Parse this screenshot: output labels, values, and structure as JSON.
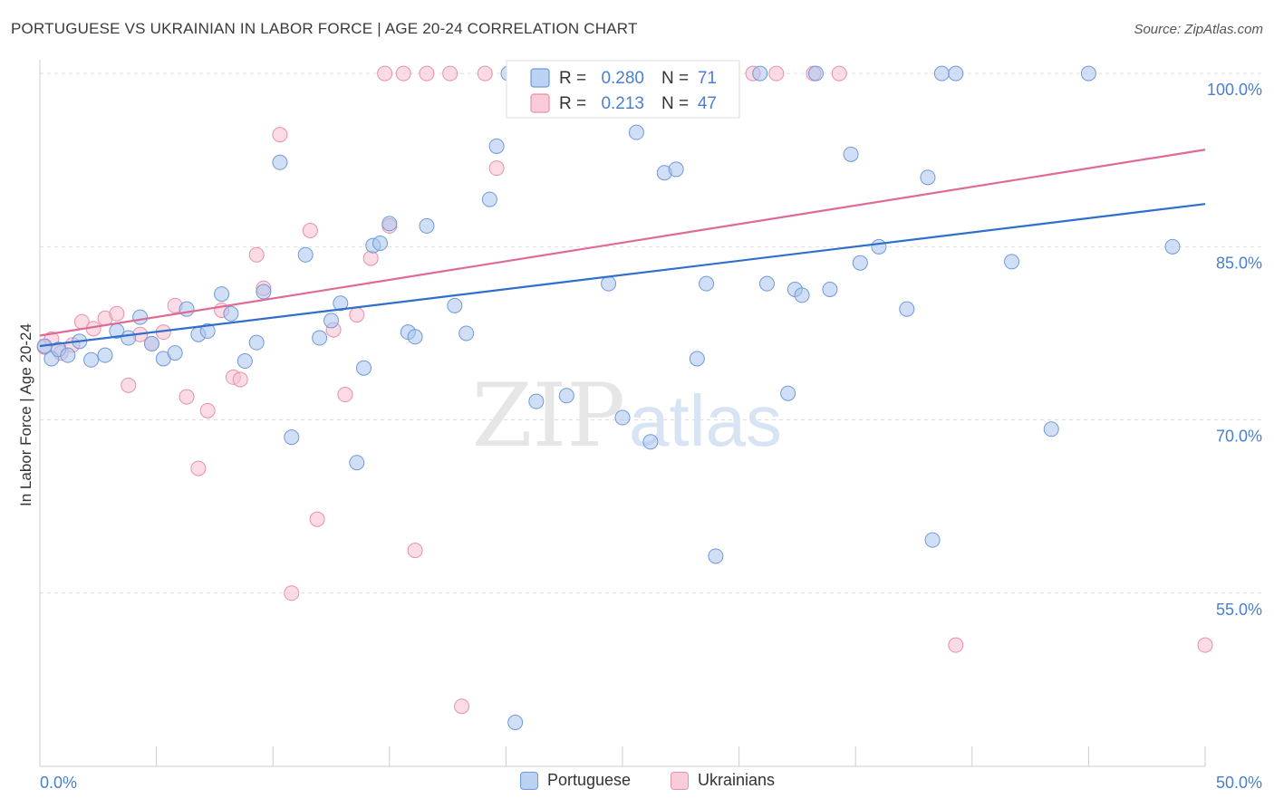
{
  "header": {
    "title": "PORTUGUESE VS UKRAINIAN IN LABOR FORCE | AGE 20-24 CORRELATION CHART",
    "source": "Source: ZipAtlas.com"
  },
  "watermark": {
    "part1": "ZIP",
    "part2": "atlas"
  },
  "colors": {
    "blue_fill": "#a9c4ee",
    "blue_stroke": "#6f9ad8",
    "blue_line": "#2f6fcc",
    "pink_fill": "#f7bfd0",
    "pink_stroke": "#e890ad",
    "pink_line": "#e06a96",
    "tick_label": "#4a7fd0",
    "grid": "#dddddd"
  },
  "chart_data": {
    "type": "scatter",
    "title": "PORTUGUESE VS UKRAINIAN IN LABOR FORCE | AGE 20-24 CORRELATION CHART",
    "xlabel": "",
    "ylabel": "In Labor Force | Age 20-24",
    "xlim": [
      0,
      50
    ],
    "ylim": [
      40,
      101.5
    ],
    "x_tick_labels": [
      {
        "value": 0,
        "label": "0.0%"
      },
      {
        "value": 50,
        "label": "50.0%"
      }
    ],
    "y_tick_labels": [
      {
        "value": 100,
        "label": "100.0%"
      },
      {
        "value": 85,
        "label": "85.0%"
      },
      {
        "value": 70,
        "label": "70.0%"
      },
      {
        "value": 55,
        "label": "55.0%"
      }
    ],
    "grid": true,
    "legend": {
      "placement": "top-center",
      "entries": [
        {
          "series": "Portuguese",
          "r_label": "R =",
          "r_value": "0.280",
          "n_label": "N =",
          "n_value": "71"
        },
        {
          "series": "Ukrainians",
          "r_label": "R =",
          "r_value": "0.213",
          "n_label": "N =",
          "n_value": "47"
        }
      ]
    },
    "bottom_legend": [
      "Portuguese",
      "Ukrainians"
    ],
    "series": [
      {
        "name": "Portuguese",
        "color": "blue",
        "trend": {
          "x": [
            0,
            50
          ],
          "y": [
            76.4,
            88.7
          ]
        },
        "points": [
          [
            0.2,
            76.4
          ],
          [
            0.5,
            75.3
          ],
          [
            0.8,
            76.1
          ],
          [
            1.2,
            75.6
          ],
          [
            1.7,
            76.8
          ],
          [
            2.2,
            75.2
          ],
          [
            2.8,
            75.6
          ],
          [
            3.3,
            77.7
          ],
          [
            3.8,
            77.1
          ],
          [
            4.3,
            78.9
          ],
          [
            4.8,
            76.6
          ],
          [
            5.3,
            75.3
          ],
          [
            5.8,
            75.8
          ],
          [
            6.3,
            79.6
          ],
          [
            6.8,
            77.4
          ],
          [
            7.2,
            77.7
          ],
          [
            7.8,
            80.9
          ],
          [
            8.2,
            79.2
          ],
          [
            8.8,
            75.1
          ],
          [
            9.3,
            76.7
          ],
          [
            9.6,
            81.1
          ],
          [
            10.3,
            92.3
          ],
          [
            10.8,
            68.5
          ],
          [
            11.4,
            84.3
          ],
          [
            12.0,
            77.1
          ],
          [
            12.5,
            78.6
          ],
          [
            12.9,
            80.1
          ],
          [
            13.6,
            66.3
          ],
          [
            13.9,
            74.5
          ],
          [
            14.3,
            85.1
          ],
          [
            14.6,
            85.3
          ],
          [
            15.0,
            87.0
          ],
          [
            15.8,
            77.6
          ],
          [
            16.1,
            77.2
          ],
          [
            16.6,
            86.8
          ],
          [
            17.8,
            79.9
          ],
          [
            18.3,
            77.5
          ],
          [
            19.3,
            89.1
          ],
          [
            19.6,
            93.7
          ],
          [
            20.1,
            100.0
          ],
          [
            20.4,
            43.8
          ],
          [
            21.3,
            71.6
          ],
          [
            22.6,
            72.1
          ],
          [
            24.4,
            81.8
          ],
          [
            25.0,
            70.2
          ],
          [
            25.6,
            94.9
          ],
          [
            26.2,
            68.1
          ],
          [
            26.8,
            91.4
          ],
          [
            27.3,
            91.7
          ],
          [
            28.2,
            75.3
          ],
          [
            28.6,
            81.8
          ],
          [
            29.0,
            58.2
          ],
          [
            30.9,
            100.0
          ],
          [
            31.2,
            81.8
          ],
          [
            32.1,
            72.3
          ],
          [
            32.4,
            81.3
          ],
          [
            32.7,
            80.8
          ],
          [
            33.3,
            100.0
          ],
          [
            33.9,
            81.3
          ],
          [
            34.8,
            93.0
          ],
          [
            35.2,
            83.6
          ],
          [
            36.0,
            85.0
          ],
          [
            37.2,
            79.6
          ],
          [
            38.1,
            91.0
          ],
          [
            38.3,
            59.6
          ],
          [
            38.7,
            100.0
          ],
          [
            39.3,
            100.0
          ],
          [
            41.7,
            83.7
          ],
          [
            43.4,
            69.2
          ],
          [
            45.0,
            100.0
          ],
          [
            48.6,
            85.0
          ]
        ]
      },
      {
        "name": "Ukrainians",
        "color": "pink",
        "trend": {
          "x": [
            0,
            50
          ],
          "y": [
            77.3,
            93.4
          ]
        },
        "points": [
          [
            0.2,
            76.3
          ],
          [
            0.5,
            77.0
          ],
          [
            0.9,
            75.8
          ],
          [
            1.4,
            76.5
          ],
          [
            1.8,
            78.5
          ],
          [
            2.3,
            77.9
          ],
          [
            2.8,
            78.8
          ],
          [
            3.3,
            79.2
          ],
          [
            3.8,
            73.0
          ],
          [
            4.3,
            77.4
          ],
          [
            4.8,
            76.6
          ],
          [
            5.3,
            77.6
          ],
          [
            5.8,
            79.9
          ],
          [
            6.3,
            72.0
          ],
          [
            6.8,
            65.8
          ],
          [
            7.2,
            70.8
          ],
          [
            7.8,
            79.5
          ],
          [
            8.3,
            73.7
          ],
          [
            8.6,
            73.5
          ],
          [
            9.3,
            84.3
          ],
          [
            9.6,
            81.4
          ],
          [
            10.3,
            94.7
          ],
          [
            10.8,
            55.0
          ],
          [
            11.6,
            86.4
          ],
          [
            11.9,
            61.4
          ],
          [
            12.6,
            77.8
          ],
          [
            13.1,
            72.2
          ],
          [
            13.6,
            79.1
          ],
          [
            14.2,
            84.0
          ],
          [
            14.8,
            100.0
          ],
          [
            15.0,
            86.8
          ],
          [
            15.6,
            100.0
          ],
          [
            16.1,
            58.7
          ],
          [
            16.6,
            100.0
          ],
          [
            17.6,
            100.0
          ],
          [
            18.1,
            45.2
          ],
          [
            19.1,
            100.0
          ],
          [
            19.6,
            91.8
          ],
          [
            20.5,
            100.0
          ],
          [
            23.6,
            100.0
          ],
          [
            24.3,
            100.0
          ],
          [
            30.6,
            100.0
          ],
          [
            31.6,
            100.0
          ],
          [
            33.2,
            100.0
          ],
          [
            34.3,
            100.0
          ],
          [
            39.3,
            50.5
          ],
          [
            50.0,
            50.5
          ]
        ]
      }
    ]
  }
}
